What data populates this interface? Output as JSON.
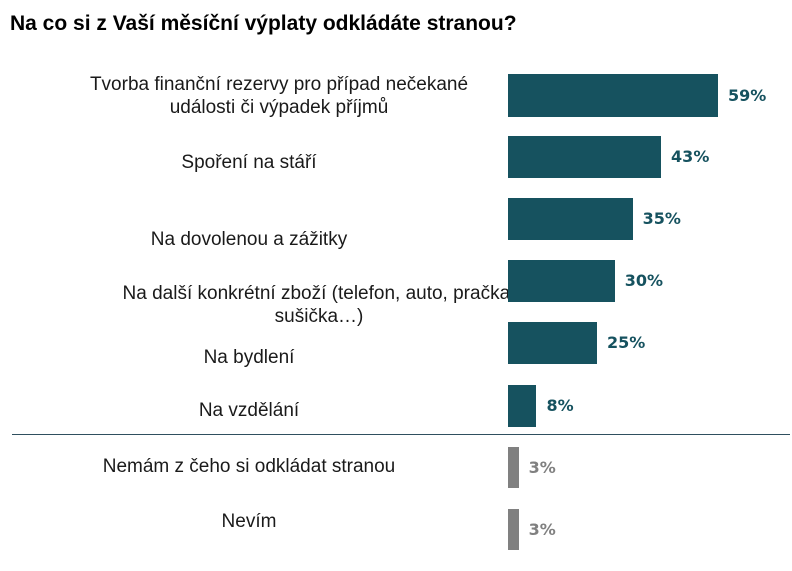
{
  "chart_data": {
    "type": "bar",
    "orientation": "horizontal",
    "title": "Na co si z Vaší měsíční výplaty odkládáte stranou?",
    "categories": [
      "Tvorba finanční rezervy pro případ nečekané události či výpadek příjmů",
      "Spoření na stáří",
      "Na dovolenou a zážitky",
      "Na další konkrétní zboží (telefon, auto, pračka, sušička…)",
      "Na bydlení",
      "Na vzdělání",
      "Nemám z čeho si odkládat stranou",
      "Nevím"
    ],
    "values": [
      59,
      43,
      35,
      30,
      25,
      8,
      3,
      3
    ],
    "value_labels": [
      "59%",
      "43%",
      "35%",
      "30%",
      "25%",
      "8%",
      "3%",
      "3%"
    ],
    "unit": "%",
    "colors": [
      "#16525f",
      "#16525f",
      "#16525f",
      "#16525f",
      "#16525f",
      "#16525f",
      "#808080",
      "#808080"
    ],
    "xlim": [
      0,
      100
    ],
    "grid": false,
    "legend": "none"
  }
}
